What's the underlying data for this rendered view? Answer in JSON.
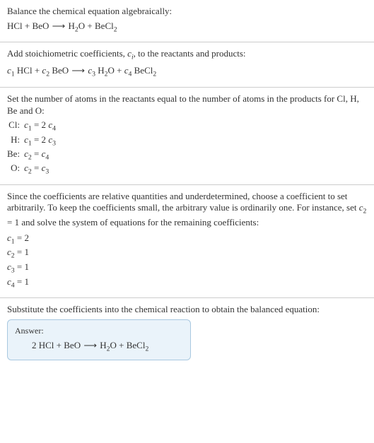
{
  "s1": {
    "text": "Balance the chemical equation algebraically:",
    "eq_lhs1": "HCl",
    "plus": " + ",
    "eq_lhs2": "BeO",
    "arrow": " ⟶ ",
    "eq_rhs1_a": "H",
    "eq_rhs1_sub": "2",
    "eq_rhs1_b": "O",
    "eq_rhs2_a": "BeCl",
    "eq_rhs2_sub": "2"
  },
  "s2": {
    "text_a": "Add stoichiometric coefficients, ",
    "ci_c": "c",
    "ci_i": "i",
    "text_b": ", to the reactants and products:",
    "c1": "c",
    "c1s": "1",
    "sp1": " HCl + ",
    "c2": "c",
    "c2s": "2",
    "sp2": " BeO ",
    "arrow": "⟶ ",
    "c3": "c",
    "c3s": "3",
    "sp3_a": " H",
    "sp3_sub": "2",
    "sp3_b": "O + ",
    "c4": "c",
    "c4s": "4",
    "sp4_a": " BeCl",
    "sp4_sub": "2"
  },
  "s3": {
    "text": "Set the number of atoms in the reactants equal to the number of atoms in the products for Cl, H, Be and O:",
    "rows": [
      {
        "el": "Cl:",
        "c_l": "c",
        "s_l": "1",
        "mid": " = 2 ",
        "c_r": "c",
        "s_r": "4"
      },
      {
        "el": "H:",
        "c_l": "c",
        "s_l": "1",
        "mid": " = 2 ",
        "c_r": "c",
        "s_r": "3"
      },
      {
        "el": "Be:",
        "c_l": "c",
        "s_l": "2",
        "mid": " = ",
        "c_r": "c",
        "s_r": "4"
      },
      {
        "el": "O:",
        "c_l": "c",
        "s_l": "2",
        "mid": " = ",
        "c_r": "c",
        "s_r": "3"
      }
    ]
  },
  "s4": {
    "text_a": "Since the coefficients are relative quantities and underdetermined, choose a coefficient to set arbitrarily. To keep the coefficients small, the arbitrary value is ordinarily one. For instance, set ",
    "c": "c",
    "cs": "2",
    "text_b": " = 1 and solve the system of equations for the remaining coefficients:",
    "lines": [
      {
        "c": "c",
        "s": "1",
        "rhs": " = 2"
      },
      {
        "c": "c",
        "s": "2",
        "rhs": " = 1"
      },
      {
        "c": "c",
        "s": "3",
        "rhs": " = 1"
      },
      {
        "c": "c",
        "s": "4",
        "rhs": " = 1"
      }
    ]
  },
  "s5": {
    "text": "Substitute the coefficients into the chemical reaction to obtain the balanced equation:",
    "answer_label": "Answer:",
    "eq_a": "2 HCl + BeO ",
    "arrow": "⟶",
    "eq_b": " H",
    "eq_b_sub": "2",
    "eq_c": "O + BeCl",
    "eq_c_sub": "2"
  },
  "colors": {
    "text": "#333333",
    "border": "#cccccc",
    "box_border": "#a8c8e0",
    "box_bg": "#eaf3fa"
  }
}
